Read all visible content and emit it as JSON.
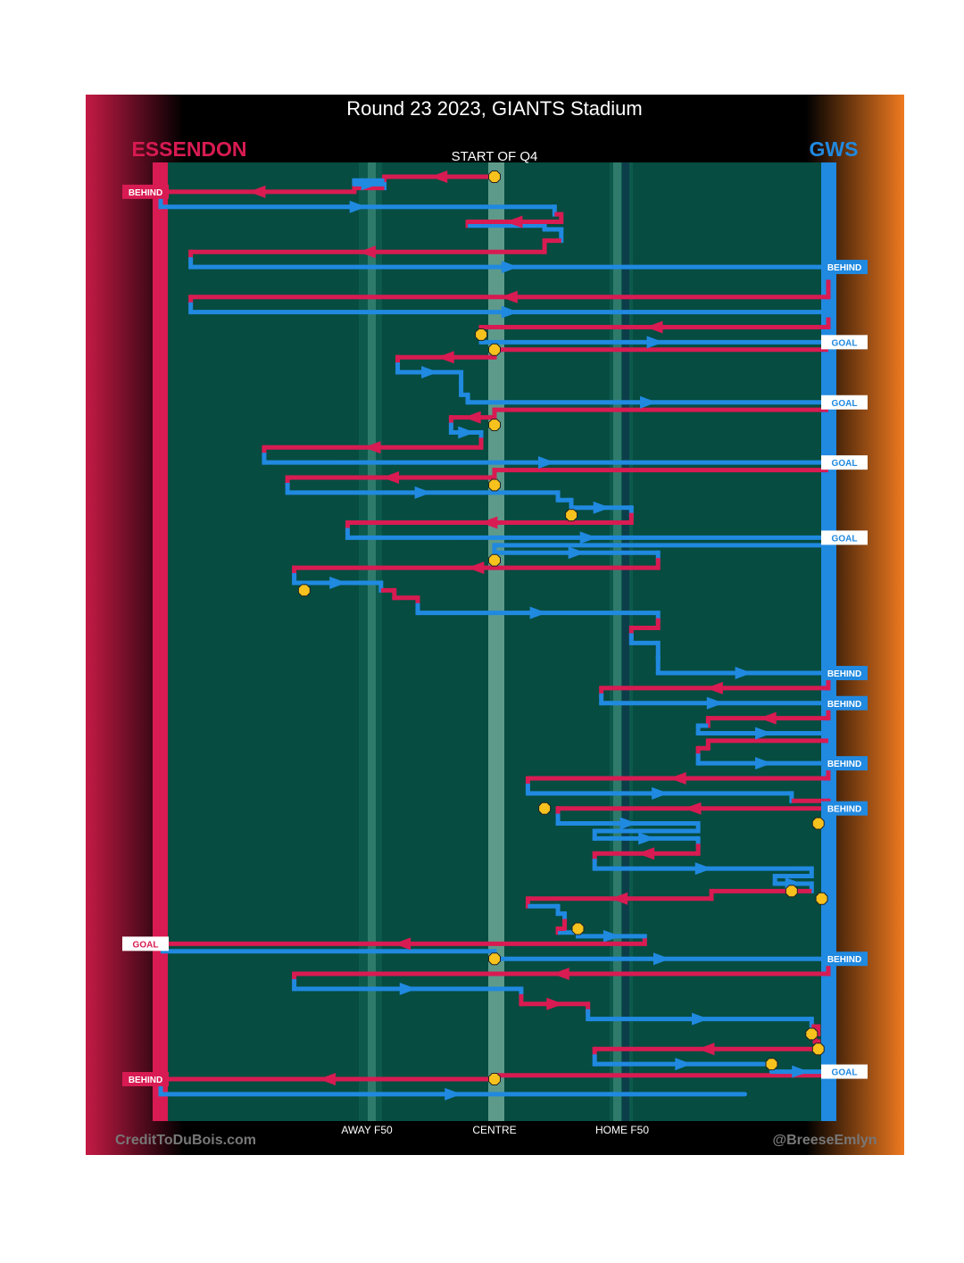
{
  "title": "Round 23 2023, GIANTS Stadium",
  "teams": {
    "left": {
      "name": "ESSENDON",
      "color": "#d81b52"
    },
    "right": {
      "name": "GWS",
      "color": "#2089e0"
    }
  },
  "subtitle": "START OF Q4",
  "x_labels": {
    "away_f50": "AWAY F50",
    "centre": "CENTRE",
    "home_f50": "HOME F50"
  },
  "footer": {
    "left": "CreditToDuBois.com",
    "right": "@BreeseEmlyn"
  },
  "colors": {
    "field": "#064c40",
    "essendon": "#d81b52",
    "gws": "#2089e0",
    "centre_circle": "#f7c21d"
  },
  "chart_data": {
    "type": "line",
    "description_units": "x = field position from Essendon goal (0) to GWS goal (100); step = possession chain sequence",
    "x_range": [
      0,
      100
    ],
    "centre_x": 50,
    "away_f50_x": 31,
    "home_f50_x": 67,
    "stoppages": [
      {
        "x": 50,
        "step": 1
      },
      {
        "x": 48,
        "step": 11.5
      },
      {
        "x": 50,
        "step": 12.5
      },
      {
        "x": 50,
        "step": 17.5
      },
      {
        "x": 50,
        "step": 21.5
      },
      {
        "x": 61.5,
        "step": 23.5
      },
      {
        "x": 50,
        "step": 26.5
      },
      {
        "x": 21.5,
        "step": 28.5
      },
      {
        "x": 57.5,
        "step": 43
      },
      {
        "x": 98.5,
        "step": 44
      },
      {
        "x": 94.5,
        "step": 48.5
      },
      {
        "x": 99,
        "step": 49
      },
      {
        "x": 62.5,
        "step": 51
      },
      {
        "x": 50,
        "step": 53
      },
      {
        "x": 97.5,
        "step": 58
      },
      {
        "x": 98.5,
        "step": 59
      },
      {
        "x": 91.5,
        "step": 60
      },
      {
        "x": 50,
        "step": 61
      }
    ],
    "series": [
      {
        "name": "ESSENDON",
        "color": "#d81b52",
        "segments": [
          {
            "step": 1,
            "x0": 50,
            "x1": 33.5
          },
          {
            "step": 2,
            "x0": 29,
            "x1": 0
          },
          {
            "step": 4,
            "x0": 60,
            "x1": 46
          },
          {
            "step": 6,
            "x0": 57.5,
            "x1": 4.5
          },
          {
            "step": 9,
            "x0": 100,
            "x1": 4.5
          },
          {
            "step": 11,
            "x0": 100,
            "x1": 48
          },
          {
            "step": 13,
            "x0": 50,
            "x1": 35.5
          },
          {
            "step": 17,
            "x0": 50,
            "x1": 43.5
          },
          {
            "step": 19,
            "x0": 48,
            "x1": 15.5
          },
          {
            "step": 21,
            "x0": 50,
            "x1": 19
          },
          {
            "step": 24,
            "x0": 70.5,
            "x1": 28
          },
          {
            "step": 27,
            "x0": 74.5,
            "x1": 20
          },
          {
            "step": 29,
            "x0": 35,
            "x1": 38.5
          },
          {
            "step": 31,
            "x0": 74.5,
            "x1": 70.5
          },
          {
            "step": 35,
            "x0": 100,
            "x1": 66
          },
          {
            "step": 37,
            "x0": 100,
            "x1": 82
          },
          {
            "step": 39,
            "x0": 82,
            "x1": 80.5
          },
          {
            "step": 41,
            "x0": 100,
            "x1": 55
          },
          {
            "step": 43,
            "x0": 100,
            "x1": 59.5
          },
          {
            "step": 46,
            "x0": 80.5,
            "x1": 65
          },
          {
            "step": 49,
            "x0": 82.5,
            "x1": 55
          },
          {
            "step": 51,
            "x0": 60.5,
            "x1": 59.5
          },
          {
            "step": 52,
            "x0": 72.5,
            "x1": 0
          },
          {
            "step": 54,
            "x0": 100,
            "x1": 20
          },
          {
            "step": 56,
            "x0": 54,
            "x1": 64
          },
          {
            "step": 58,
            "x0": 98.5,
            "x1": 98
          },
          {
            "step": 59,
            "x0": 98.5,
            "x1": 65
          },
          {
            "step": 61,
            "x0": 50,
            "x1": 0
          }
        ]
      },
      {
        "name": "GWS",
        "color": "#2089e0",
        "segments": [
          {
            "step": 1.5,
            "x0": 29,
            "x1": 33.5
          },
          {
            "step": 3,
            "x0": 0,
            "x1": 59
          },
          {
            "step": 4.5,
            "x0": 57.5,
            "x1": 60
          },
          {
            "step": 7,
            "x0": 4.5,
            "x1": 100
          },
          {
            "step": 10,
            "x0": 4.5,
            "x1": 100
          },
          {
            "step": 12,
            "x0": 48,
            "x1": 100
          },
          {
            "step": 14,
            "x0": 35.5,
            "x1": 45
          },
          {
            "step": 15.5,
            "x0": 45,
            "x1": 46
          },
          {
            "step": 16,
            "x0": 46,
            "x1": 100
          },
          {
            "step": 18,
            "x0": 43.5,
            "x1": 48
          },
          {
            "step": 20,
            "x0": 15.5,
            "x1": 100
          },
          {
            "step": 22,
            "x0": 19,
            "x1": 59.5
          },
          {
            "step": 23,
            "x0": 61.5,
            "x1": 70.5
          },
          {
            "step": 25,
            "x0": 28,
            "x1": 100
          },
          {
            "step": 26,
            "x0": 50,
            "x1": 74.5
          },
          {
            "step": 28,
            "x0": 20,
            "x1": 33
          },
          {
            "step": 30,
            "x0": 38.5,
            "x1": 74.5
          },
          {
            "step": 32,
            "x0": 70.5,
            "x1": 74.5
          },
          {
            "step": 34,
            "x0": 74.5,
            "x1": 100
          },
          {
            "step": 36,
            "x0": 66,
            "x1": 100
          },
          {
            "step": 38,
            "x0": 80.5,
            "x1": 100
          },
          {
            "step": 40,
            "x0": 80.5,
            "x1": 100
          },
          {
            "step": 42,
            "x0": 55,
            "x1": 94.5
          },
          {
            "step": 44,
            "x0": 59.5,
            "x1": 80.5
          },
          {
            "step": 45,
            "x0": 65,
            "x1": 80.5
          },
          {
            "step": 47,
            "x0": 65,
            "x1": 97.5
          },
          {
            "step": 48,
            "x0": 92,
            "x1": 97.5
          },
          {
            "step": 50,
            "x0": 59.5,
            "x1": 60.5
          },
          {
            "step": 51.5,
            "x0": 62.5,
            "x1": 72.5
          },
          {
            "step": 53,
            "x0": 50,
            "x1": 100
          },
          {
            "step": 55,
            "x0": 20,
            "x1": 54
          },
          {
            "step": 57,
            "x0": 64,
            "x1": 97.5
          },
          {
            "step": 60,
            "x0": 65,
            "x1": 91.5
          },
          {
            "step": 60.5,
            "x0": 91.5,
            "x1": 100
          },
          {
            "step": 62,
            "x0": 0,
            "x1": 87.5
          }
        ]
      }
    ],
    "scores": [
      {
        "team": "ESSENDON",
        "type": "BEHIND",
        "step": 2
      },
      {
        "team": "GWS",
        "type": "BEHIND",
        "step": 7
      },
      {
        "team": "GWS",
        "type": "GOAL",
        "step": 12
      },
      {
        "team": "GWS",
        "type": "GOAL",
        "step": 16
      },
      {
        "team": "GWS",
        "type": "GOAL",
        "step": 20
      },
      {
        "team": "GWS",
        "type": "GOAL",
        "step": 25
      },
      {
        "team": "GWS",
        "type": "BEHIND",
        "step": 34
      },
      {
        "team": "GWS",
        "type": "BEHIND",
        "step": 36
      },
      {
        "team": "GWS",
        "type": "BEHIND",
        "step": 40
      },
      {
        "team": "GWS",
        "type": "BEHIND",
        "step": 43
      },
      {
        "team": "ESSENDON",
        "type": "GOAL",
        "step": 52
      },
      {
        "team": "GWS",
        "type": "BEHIND",
        "step": 53
      },
      {
        "team": "GWS",
        "type": "GOAL",
        "step": 60.5
      },
      {
        "team": "ESSENDON",
        "type": "BEHIND",
        "step": 61
      }
    ]
  }
}
